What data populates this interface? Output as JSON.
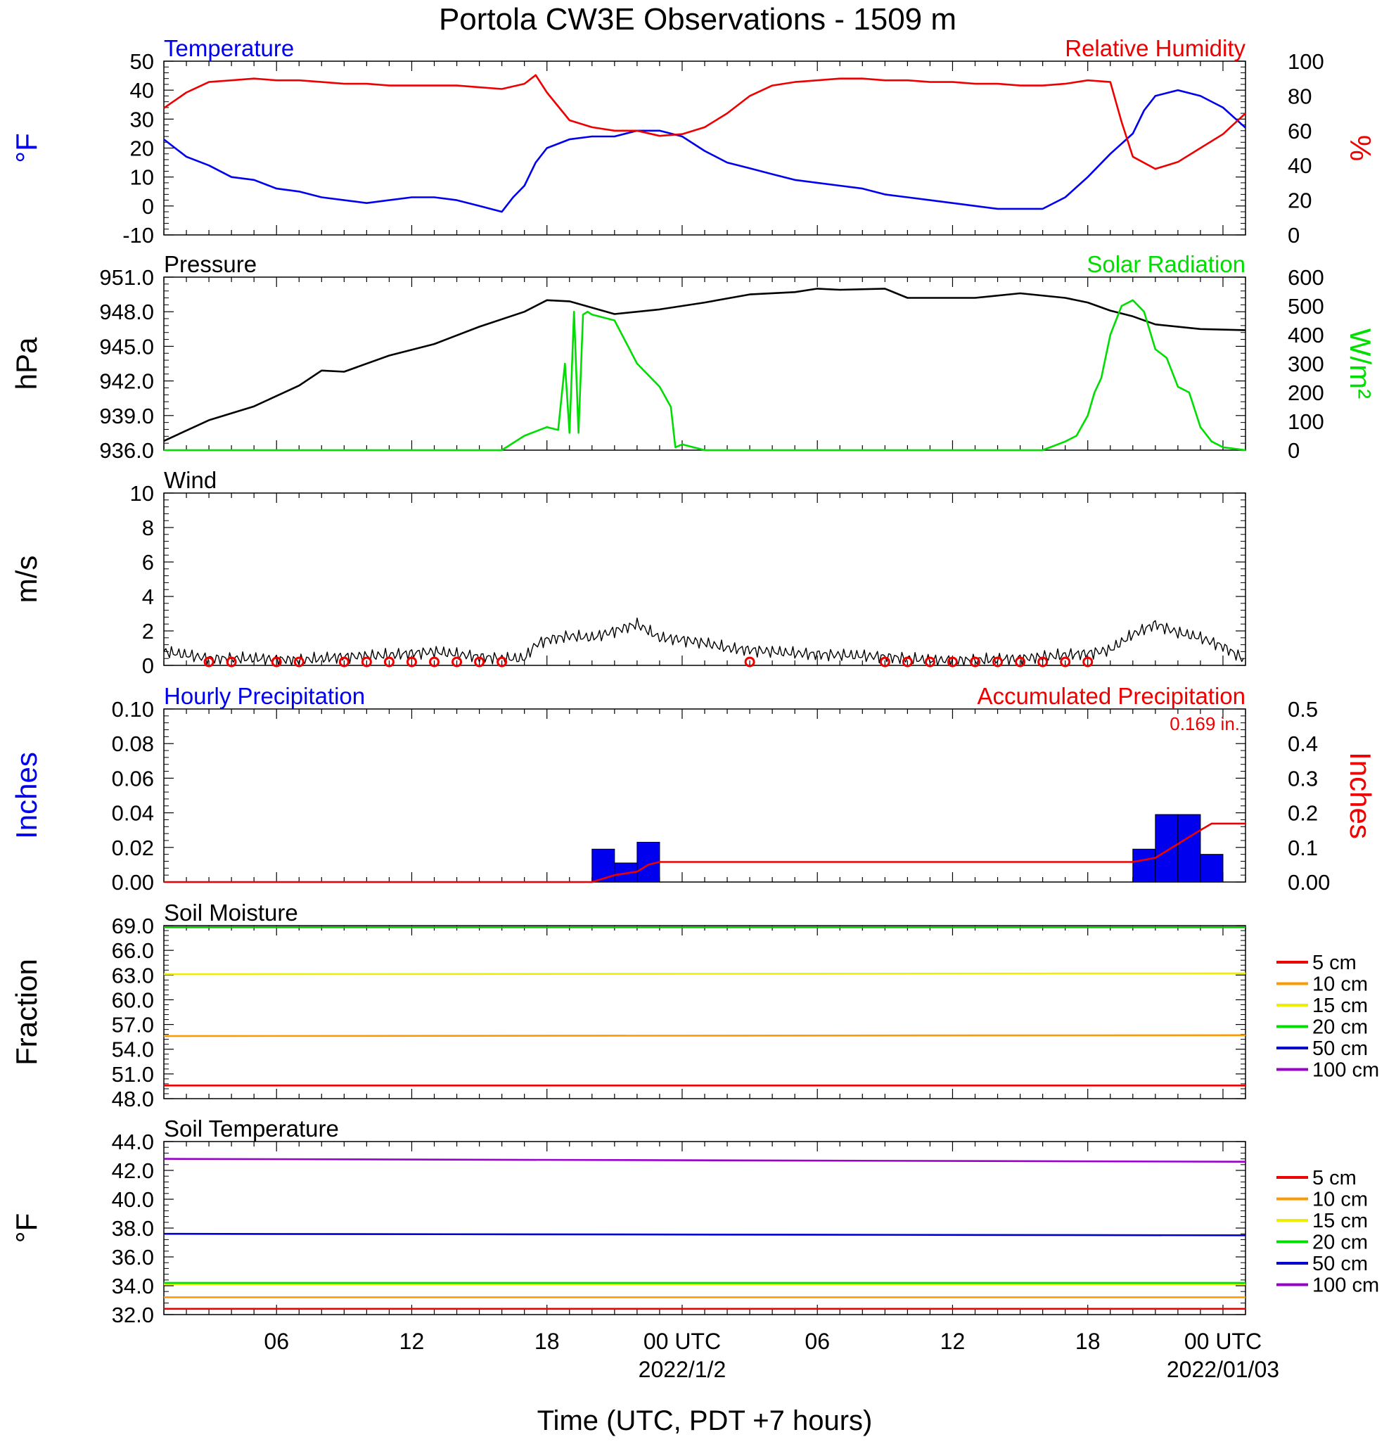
{
  "page_title": "Portola CW3E Observations - 1509 m",
  "time_axis": {
    "xlabel": "Time (UTC, PDT +7 hours)",
    "hours_range": [
      0,
      48
    ],
    "ticks": [
      {
        "hour": 5,
        "label": "06",
        "sub": ""
      },
      {
        "hour": 11,
        "label": "12",
        "sub": ""
      },
      {
        "hour": 17,
        "label": "18",
        "sub": ""
      },
      {
        "hour": 23,
        "label": "00 UTC",
        "sub": "2022/1/2"
      },
      {
        "hour": 29,
        "label": "06",
        "sub": ""
      },
      {
        "hour": 35,
        "label": "12",
        "sub": ""
      },
      {
        "hour": 41,
        "label": "18",
        "sub": ""
      },
      {
        "hour": 47,
        "label": "00 UTC",
        "sub": "2022/01/03"
      }
    ]
  },
  "chart_data": [
    {
      "id": "temp_rh",
      "type": "line",
      "left_title": "Temperature",
      "right_title": "Relative Humidity",
      "ylabel_left": "°F",
      "ylabel_right": "%",
      "ylim_left": [
        -10,
        50
      ],
      "ylim_right": [
        0,
        100
      ],
      "yticks_left": [
        "50",
        "40",
        "30",
        "20",
        "10",
        "0",
        "-10"
      ],
      "yticks_right": [
        "100",
        "80",
        "60",
        "40",
        "20",
        "0"
      ],
      "series": [
        {
          "name": "Temperature",
          "axis": "left",
          "color": "#0000ee",
          "x": [
            0,
            1,
            2,
            3,
            4,
            5,
            6,
            7,
            8,
            9,
            10,
            11,
            12,
            13,
            14,
            15,
            15.5,
            16,
            16.5,
            17,
            18,
            19,
            20,
            21,
            22,
            23,
            24,
            25,
            26,
            27,
            28,
            29,
            30,
            31,
            32,
            33,
            34,
            35,
            36,
            37,
            38,
            39,
            40,
            41,
            42,
            43,
            43.5,
            44,
            45,
            46,
            47,
            48
          ],
          "y": [
            23,
            17,
            14,
            10,
            9,
            6,
            5,
            3,
            2,
            1,
            2,
            3,
            3,
            2,
            0,
            -2,
            3,
            7,
            15,
            20,
            23,
            24,
            24,
            26,
            26,
            24,
            19,
            15,
            13,
            11,
            9,
            8,
            7,
            6,
            4,
            3,
            2,
            1,
            0,
            -1,
            -1,
            -1,
            3,
            10,
            18,
            25,
            33,
            38,
            40,
            38,
            34,
            27
          ]
        },
        {
          "name": "Relative Humidity",
          "axis": "right",
          "color": "#ee0000",
          "x": [
            0,
            1,
            2,
            3,
            4,
            5,
            6,
            7,
            8,
            9,
            10,
            11,
            12,
            13,
            14,
            15,
            16,
            16.5,
            17,
            18,
            19,
            20,
            21,
            22,
            23,
            24,
            25,
            26,
            27,
            28,
            29,
            30,
            31,
            32,
            33,
            34,
            35,
            36,
            37,
            38,
            39,
            40,
            41,
            42,
            42.5,
            43,
            44,
            45,
            46,
            47,
            48
          ],
          "y": [
            73,
            82,
            88,
            89,
            90,
            89,
            89,
            88,
            87,
            87,
            86,
            86,
            86,
            86,
            85,
            84,
            87,
            92,
            82,
            66,
            62,
            60,
            60,
            57,
            58,
            62,
            70,
            80,
            86,
            88,
            89,
            90,
            90,
            89,
            89,
            88,
            88,
            87,
            87,
            86,
            86,
            87,
            89,
            88,
            65,
            45,
            38,
            42,
            50,
            58,
            70
          ]
        }
      ]
    },
    {
      "id": "pressure_solar",
      "type": "line",
      "left_title": "Pressure",
      "right_title": "Solar Radiation",
      "ylabel_left": "hPa",
      "ylabel_right": "W/m²",
      "ylim_left": [
        936,
        951
      ],
      "ylim_right": [
        0,
        600
      ],
      "yticks_left": [
        "951.0",
        "948.0",
        "945.0",
        "942.0",
        "939.0",
        "936.0"
      ],
      "yticks_right": [
        "600",
        "500",
        "400",
        "300",
        "200",
        "100",
        "0"
      ],
      "series": [
        {
          "name": "Pressure",
          "axis": "left",
          "color": "#000000",
          "x": [
            0,
            2,
            4,
            6,
            7,
            8,
            10,
            12,
            14,
            16,
            17,
            18,
            20,
            22,
            24,
            26,
            28,
            29,
            30,
            32,
            33,
            34,
            36,
            38,
            40,
            41,
            42,
            43,
            44,
            46,
            48
          ],
          "y": [
            936.8,
            938.6,
            939.8,
            941.6,
            942.9,
            942.8,
            944.2,
            945.2,
            946.7,
            948.0,
            949.0,
            948.9,
            947.8,
            948.2,
            948.8,
            949.5,
            949.7,
            950.0,
            949.9,
            950.0,
            949.2,
            949.2,
            949.2,
            949.6,
            949.2,
            948.8,
            948.1,
            947.6,
            946.9,
            946.5,
            946.4
          ]
        },
        {
          "name": "Solar Radiation",
          "axis": "right",
          "color": "#00dd00",
          "x": [
            0,
            14,
            15,
            16,
            17,
            17.5,
            17.8,
            18,
            18.2,
            18.4,
            18.6,
            18.8,
            19,
            20,
            21,
            22,
            22.5,
            22.7,
            23,
            24,
            38,
            39,
            40,
            40.5,
            41,
            41.3,
            41.6,
            42,
            42.5,
            43,
            43.5,
            44,
            44.5,
            45,
            45.5,
            46,
            46.5,
            47,
            48
          ],
          "y": [
            0,
            0,
            0,
            50,
            80,
            70,
            300,
            60,
            480,
            60,
            470,
            480,
            470,
            450,
            300,
            220,
            150,
            10,
            20,
            0,
            0,
            0,
            30,
            50,
            120,
            200,
            250,
            400,
            500,
            520,
            480,
            350,
            320,
            220,
            200,
            80,
            30,
            10,
            0
          ]
        }
      ]
    },
    {
      "id": "wind",
      "type": "line",
      "left_title": "Wind",
      "ylabel_left": "m/s",
      "ylim_left": [
        0,
        10
      ],
      "yticks_left": [
        "10",
        "8",
        "6",
        "4",
        "2",
        "0"
      ],
      "series": [
        {
          "name": "Wind",
          "axis": "left",
          "color": "#000000",
          "x": [
            0,
            1,
            2,
            4,
            6,
            8,
            10,
            12,
            14,
            15,
            16,
            16.5,
            17,
            18,
            19,
            20,
            21,
            22,
            23,
            24,
            25,
            26,
            28,
            30,
            32,
            34,
            36,
            38,
            40,
            41,
            42,
            43,
            44,
            45,
            46,
            47,
            48
          ],
          "y": [
            0.8,
            0.6,
            0.4,
            0.4,
            0.3,
            0.5,
            0.6,
            0.8,
            0.5,
            0.4,
            0.4,
            1.2,
            1.5,
            1.7,
            1.6,
            2.0,
            2.4,
            1.6,
            1.5,
            1.3,
            1.0,
            0.9,
            0.7,
            0.6,
            0.5,
            0.3,
            0.3,
            0.4,
            0.6,
            0.7,
            0.9,
            1.8,
            2.4,
            1.9,
            1.6,
            1.1,
            0.3
          ]
        }
      ],
      "calm_circle_hours": [
        2,
        3,
        5,
        6,
        8,
        9,
        10,
        11,
        12,
        13,
        14,
        15,
        26,
        32,
        33,
        34,
        35,
        36,
        37,
        38,
        39,
        40,
        41
      ],
      "calm_color": "#ee0000"
    },
    {
      "id": "precip",
      "type": "bar",
      "left_title": "Hourly Precipitation",
      "right_title": "Accumulated Precipitation",
      "total_label": "0.169 in.",
      "ylabel_left": "Inches",
      "ylabel_right": "Inches",
      "ylim_left": [
        0,
        0.1
      ],
      "ylim_right": [
        0,
        0.5
      ],
      "yticks_left": [
        "0.10",
        "0.08",
        "0.06",
        "0.04",
        "0.02",
        "0.00"
      ],
      "yticks_right": [
        "0.5",
        "0.4",
        "0.3",
        "0.2",
        "0.1",
        "0.00"
      ],
      "bars": {
        "name": "Hourly Precipitation",
        "color": "#0000ee",
        "start_hours": [
          19,
          20,
          21,
          43,
          44,
          45,
          46
        ],
        "values": [
          0.019,
          0.011,
          0.023,
          0.019,
          0.039,
          0.039,
          0.016
        ]
      },
      "series": [
        {
          "name": "Accumulated Precipitation",
          "axis": "right",
          "color": "#ee0000",
          "x": [
            0,
            19,
            20,
            21,
            21.5,
            22,
            43,
            44,
            45,
            46,
            46.5,
            47,
            48
          ],
          "y": [
            0,
            0,
            0.02,
            0.03,
            0.05,
            0.058,
            0.058,
            0.07,
            0.11,
            0.15,
            0.169,
            0.169,
            0.169
          ]
        }
      ]
    },
    {
      "id": "soil_moisture",
      "type": "line",
      "left_title": "Soil Moisture",
      "ylabel_left": "Fraction",
      "ylim_left": [
        48,
        69
      ],
      "yticks_left": [
        "69.0",
        "66.0",
        "63.0",
        "60.0",
        "57.0",
        "54.0",
        "51.0",
        "48.0"
      ],
      "series": [
        {
          "name": "5 cm",
          "axis": "left",
          "color": "#ee0000",
          "x": [
            0,
            48
          ],
          "y": [
            49.6,
            49.6
          ]
        },
        {
          "name": "10 cm",
          "axis": "left",
          "color": "#ff9900",
          "x": [
            0,
            48
          ],
          "y": [
            55.6,
            55.7
          ]
        },
        {
          "name": "15 cm",
          "axis": "left",
          "color": "#eeee00",
          "x": [
            0,
            48
          ],
          "y": [
            63.1,
            63.2
          ]
        },
        {
          "name": "20 cm",
          "axis": "left",
          "color": "#00cc00",
          "x": [
            0,
            48
          ],
          "y": [
            68.8,
            68.8
          ]
        }
      ],
      "legend": [
        {
          "label": "5 cm",
          "color": "#ee0000"
        },
        {
          "label": "10 cm",
          "color": "#ff9900"
        },
        {
          "label": "15 cm",
          "color": "#eeee00"
        },
        {
          "label": "20 cm",
          "color": "#00dd00"
        },
        {
          "label": "50 cm",
          "color": "#0000cc"
        },
        {
          "label": "100 cm",
          "color": "#9900cc"
        }
      ]
    },
    {
      "id": "soil_temp",
      "type": "line",
      "left_title": "Soil Temperature",
      "ylabel_left": "°F",
      "ylim_left": [
        32,
        44
      ],
      "yticks_left": [
        "44.0",
        "42.0",
        "40.0",
        "38.0",
        "36.0",
        "34.0",
        "32.0"
      ],
      "series": [
        {
          "name": "5 cm",
          "axis": "left",
          "color": "#ee0000",
          "x": [
            0,
            48
          ],
          "y": [
            32.4,
            32.4
          ]
        },
        {
          "name": "10 cm",
          "axis": "left",
          "color": "#ff9900",
          "x": [
            0,
            48
          ],
          "y": [
            33.2,
            33.2
          ]
        },
        {
          "name": "15 cm",
          "axis": "left",
          "color": "#eeee00",
          "x": [
            0,
            48
          ],
          "y": [
            34.1,
            34.1
          ]
        },
        {
          "name": "20 cm",
          "axis": "left",
          "color": "#00dd00",
          "x": [
            0,
            48
          ],
          "y": [
            34.2,
            34.2
          ]
        },
        {
          "name": "50 cm",
          "axis": "left",
          "color": "#0000cc",
          "x": [
            0,
            48
          ],
          "y": [
            37.6,
            37.5
          ]
        },
        {
          "name": "100 cm",
          "axis": "left",
          "color": "#9900cc",
          "x": [
            0,
            48
          ],
          "y": [
            42.8,
            42.6
          ]
        }
      ],
      "legend": [
        {
          "label": "5 cm",
          "color": "#ee0000"
        },
        {
          "label": "10 cm",
          "color": "#ff9900"
        },
        {
          "label": "15 cm",
          "color": "#eeee00"
        },
        {
          "label": "20 cm",
          "color": "#00dd00"
        },
        {
          "label": "50 cm",
          "color": "#0000cc"
        },
        {
          "label": "100 cm",
          "color": "#9900cc"
        }
      ]
    }
  ]
}
